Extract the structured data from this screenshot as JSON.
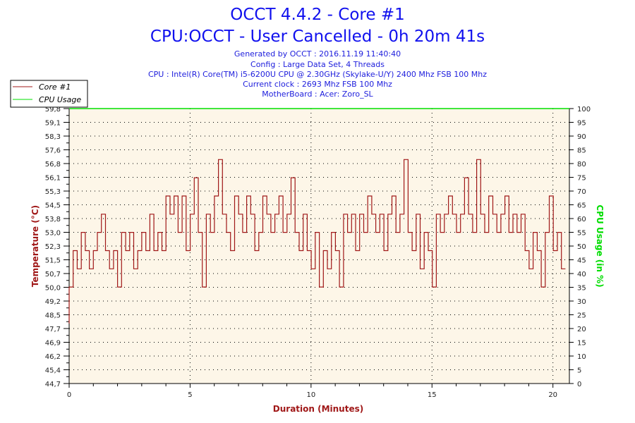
{
  "chart_data": {
    "type": "line",
    "title": "OCCT 4.4.2 - Core #1",
    "subtitle": "CPU:OCCT - User Cancelled - 0h 20m 41s",
    "info_lines": [
      "Generated by OCCT : 2016.11.19 11:40:40",
      "Config : Large Data Set, 4 Threads",
      "CPU : Intel(R) Core(TM) i5-6200U CPU @ 2.30GHz (Skylake-U/Y) 2400 Mhz FSB 100 Mhz",
      "Current clock : 2693 Mhz FSB 100 Mhz",
      "MotherBoard : Acer: Zoro_SL"
    ],
    "xlabel": "Duration (Minutes)",
    "ylabel": "Temperature (°C)",
    "y2label": "CPU Usage (in %)",
    "xlim": [
      0,
      20.68
    ],
    "ylim": [
      44.7,
      59.8
    ],
    "y2lim": [
      0,
      100
    ],
    "x_ticks": [
      "0",
      "5",
      "10",
      "15",
      "20"
    ],
    "y_ticks": [
      "44,7",
      "45,4",
      "46,2",
      "46,9",
      "47,7",
      "48,5",
      "49,2",
      "50,0",
      "50,7",
      "51,5",
      "52,3",
      "53,0",
      "53,8",
      "54,5",
      "55,3",
      "56,1",
      "56,8",
      "57,6",
      "58,3",
      "59,1",
      "59,8"
    ],
    "y2_ticks": [
      "0",
      "5",
      "10",
      "15",
      "20",
      "25",
      "30",
      "35",
      "40",
      "45",
      "50",
      "55",
      "60",
      "65",
      "70",
      "75",
      "80",
      "85",
      "90",
      "95",
      "100"
    ],
    "grid": true,
    "legend_position": "top-left",
    "colors": {
      "core": "#a01818",
      "cpu": "#00e000",
      "title": "#1010ee",
      "plot_bg": "#fdf6e8"
    },
    "series": [
      {
        "name": "Core #1",
        "x_step": 0.1668,
        "values": [
          48,
          50,
          52,
          51,
          53,
          52,
          51,
          52,
          53,
          54,
          52,
          51,
          52,
          50,
          53,
          52,
          53,
          51,
          52,
          53,
          52,
          54,
          52,
          53,
          52,
          55,
          54,
          55,
          53,
          55,
          52,
          54,
          56,
          53,
          50,
          54,
          53,
          55,
          57,
          54,
          53,
          52,
          55,
          54,
          53,
          55,
          54,
          52,
          53,
          55,
          54,
          53,
          54,
          55,
          53,
          54,
          56,
          53,
          52,
          54,
          52,
          51,
          53,
          50,
          52,
          51,
          53,
          52,
          50,
          54,
          53,
          54,
          52,
          54,
          53,
          55,
          54,
          53,
          54,
          52,
          54,
          55,
          53,
          54,
          57,
          53,
          52,
          54,
          51,
          53,
          52,
          50,
          54,
          53,
          54,
          55,
          54,
          53,
          54,
          56,
          54,
          53,
          57,
          54,
          53,
          55,
          54,
          53,
          54,
          55,
          53,
          54,
          53,
          54,
          52,
          51,
          53,
          52,
          50,
          53,
          55,
          52,
          53,
          51
        ]
      },
      {
        "name": "CPU Usage",
        "x": [
          0,
          20.68
        ],
        "values": [
          100,
          100
        ]
      }
    ]
  }
}
